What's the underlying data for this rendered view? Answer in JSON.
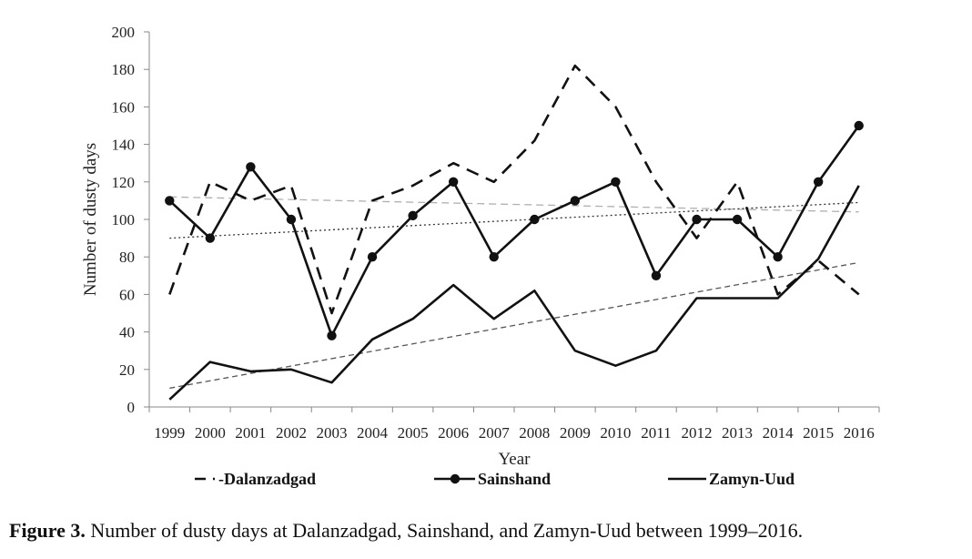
{
  "chart_data": {
    "type": "line",
    "title": "",
    "xlabel": "Year",
    "ylabel": "Number of dusty days",
    "ylim": [
      0,
      200
    ],
    "yticks": [
      0,
      20,
      40,
      60,
      80,
      100,
      120,
      140,
      160,
      180,
      200
    ],
    "categories": [
      "1999",
      "2000",
      "2001",
      "2002",
      "2003",
      "2004",
      "2005",
      "2006",
      "2007",
      "2008",
      "2009",
      "2010",
      "2011",
      "2012",
      "2013",
      "2014",
      "2015",
      "2016"
    ],
    "series": [
      {
        "name": "Dalanzadgad",
        "legend_label": "-Dalanzadgad",
        "style": "dashed",
        "marker": "none",
        "values": [
          60,
          120,
          110,
          118,
          50,
          110,
          118,
          130,
          120,
          142,
          182,
          160,
          120,
          90,
          120,
          60,
          78,
          60
        ],
        "trendline": {
          "start": 112,
          "end": 104,
          "style": "dashed-light",
          "color": "#b0b0b0"
        }
      },
      {
        "name": "Sainshand",
        "legend_label": "Sainshand",
        "style": "solid",
        "marker": "circle",
        "values": [
          110,
          90,
          128,
          100,
          38,
          80,
          102,
          120,
          80,
          100,
          110,
          120,
          70,
          100,
          100,
          80,
          120,
          150
        ],
        "trendline": {
          "start": 90,
          "end": 109,
          "style": "dotted",
          "color": "#333333"
        }
      },
      {
        "name": "Zamyn-Uud",
        "legend_label": "Zamyn-Uud",
        "style": "solid",
        "marker": "none",
        "values": [
          4,
          24,
          19,
          20,
          13,
          36,
          47,
          65,
          47,
          62,
          30,
          22,
          30,
          58,
          58,
          58,
          79,
          118
        ],
        "trendline": {
          "start": 10,
          "end": 77,
          "style": "dashed",
          "color": "#555555"
        }
      }
    ],
    "legend_position": "bottom",
    "grid": false
  },
  "caption": {
    "label": "Figure 3.",
    "text": " Number of dusty days at Dalanzadgad, Sainshand, and Zamyn-Uud between 1999–2016."
  }
}
